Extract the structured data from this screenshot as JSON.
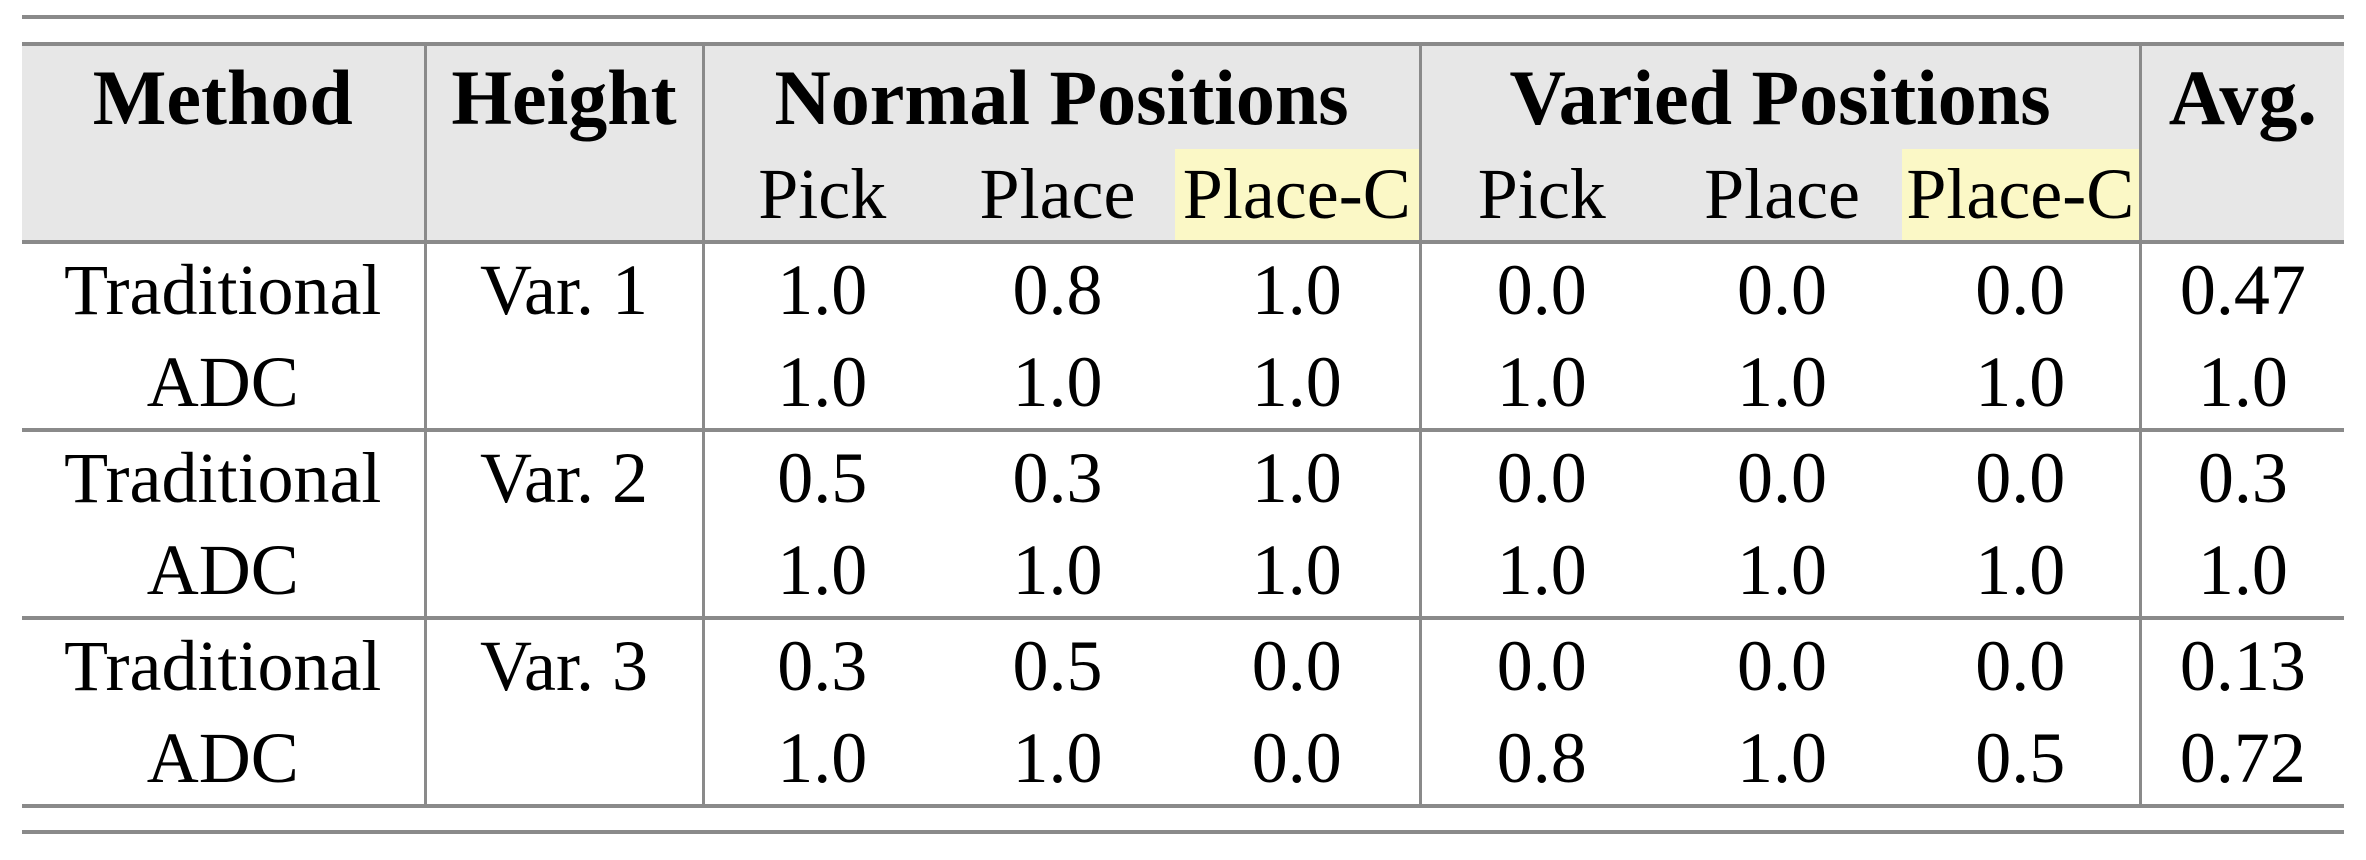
{
  "colors": {
    "header-bg": "#e7e7e7",
    "highlight": "#fbf8c6",
    "rule": "#8a8a8a",
    "text": "#000000"
  },
  "table": {
    "header": {
      "method": "Method",
      "height": "Height",
      "normal_positions": "Normal Positions",
      "varied_positions": "Varied Positions",
      "avg": "Avg.",
      "subcolumns": [
        "Pick",
        "Place",
        "Place-C",
        "Pick",
        "Place",
        "Place-C"
      ]
    },
    "rows": [
      {
        "method": "Traditional",
        "height": "Var. 1",
        "values": [
          "1.0",
          "0.8",
          "1.0",
          "0.0",
          "0.0",
          "0.0"
        ],
        "avg": "0.47"
      },
      {
        "method": "ADC",
        "height": "",
        "values": [
          "1.0",
          "1.0",
          "1.0",
          "1.0",
          "1.0",
          "1.0"
        ],
        "avg": "1.0"
      },
      {
        "method": "Traditional",
        "height": "Var. 2",
        "values": [
          "0.5",
          "0.3",
          "1.0",
          "0.0",
          "0.0",
          "0.0"
        ],
        "avg": "0.3"
      },
      {
        "method": "ADC",
        "height": "",
        "values": [
          "1.0",
          "1.0",
          "1.0",
          "1.0",
          "1.0",
          "1.0"
        ],
        "avg": "1.0"
      },
      {
        "method": "Traditional",
        "height": "Var. 3",
        "values": [
          "0.3",
          "0.5",
          "0.0",
          "0.0",
          "0.0",
          "0.0"
        ],
        "avg": "0.13"
      },
      {
        "method": "ADC",
        "height": "",
        "values": [
          "1.0",
          "1.0",
          "0.0",
          "0.8",
          "1.0",
          "0.5"
        ],
        "avg": "0.72"
      }
    ]
  }
}
